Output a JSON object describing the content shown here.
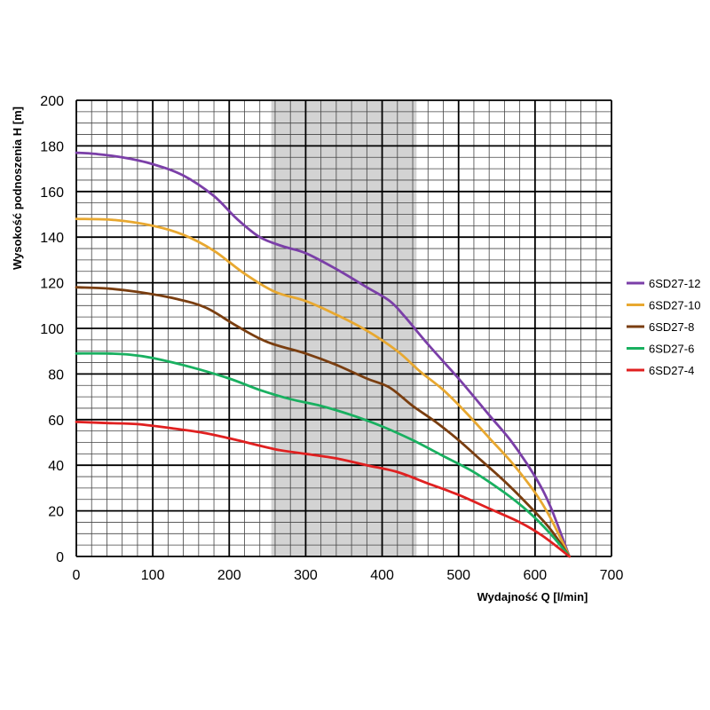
{
  "chart_data": {
    "type": "line",
    "xlabel": "Wydajność Q [l/min]",
    "ylabel": "Wysokość podnoszenia H [m]",
    "xlim": [
      0,
      700
    ],
    "ylim": [
      0,
      200
    ],
    "x_major_ticks": [
      0,
      100,
      200,
      300,
      400,
      500,
      600,
      700
    ],
    "y_major_ticks": [
      0,
      20,
      40,
      60,
      80,
      100,
      120,
      140,
      160,
      180,
      200
    ],
    "x_minor_step": 20,
    "y_minor_step": 5,
    "grid": true,
    "legend_position": "right",
    "highlight_band": {
      "x_from": 255,
      "x_to": 445,
      "color": "#d3d3d3"
    },
    "series": [
      {
        "name": "6SD27-12",
        "color": "#7b3fa8",
        "points": [
          [
            0,
            177
          ],
          [
            25,
            176.5
          ],
          [
            60,
            175
          ],
          [
            100,
            172
          ],
          [
            140,
            167
          ],
          [
            180,
            158
          ],
          [
            210,
            148
          ],
          [
            240,
            140
          ],
          [
            270,
            136
          ],
          [
            300,
            133
          ],
          [
            340,
            126
          ],
          [
            380,
            118
          ],
          [
            410,
            112
          ],
          [
            430,
            105
          ],
          [
            460,
            93
          ],
          [
            500,
            78
          ],
          [
            540,
            62
          ],
          [
            570,
            50
          ],
          [
            600,
            35
          ],
          [
            620,
            22
          ],
          [
            645,
            0
          ]
        ]
      },
      {
        "name": "6SD27-10",
        "color": "#e8a830",
        "points": [
          [
            0,
            148
          ],
          [
            50,
            147.5
          ],
          [
            100,
            145
          ],
          [
            140,
            141
          ],
          [
            180,
            134
          ],
          [
            220,
            124
          ],
          [
            260,
            116
          ],
          [
            300,
            112
          ],
          [
            340,
            106
          ],
          [
            380,
            99
          ],
          [
            420,
            90
          ],
          [
            450,
            81
          ],
          [
            480,
            73
          ],
          [
            510,
            63
          ],
          [
            540,
            52
          ],
          [
            570,
            41
          ],
          [
            600,
            28
          ],
          [
            620,
            17
          ],
          [
            645,
            0
          ]
        ]
      },
      {
        "name": "6SD27-8",
        "color": "#7a3e10",
        "points": [
          [
            0,
            118
          ],
          [
            40,
            117.5
          ],
          [
            80,
            116
          ],
          [
            130,
            113
          ],
          [
            170,
            109
          ],
          [
            210,
            101
          ],
          [
            250,
            94
          ],
          [
            300,
            89
          ],
          [
            340,
            84
          ],
          [
            380,
            78
          ],
          [
            410,
            74
          ],
          [
            440,
            66
          ],
          [
            470,
            59
          ],
          [
            500,
            51
          ],
          [
            530,
            42
          ],
          [
            560,
            33
          ],
          [
            590,
            23
          ],
          [
            620,
            12
          ],
          [
            645,
            0
          ]
        ]
      },
      {
        "name": "6SD27-6",
        "color": "#19b060",
        "points": [
          [
            0,
            89
          ],
          [
            40,
            89
          ],
          [
            70,
            88.5
          ],
          [
            100,
            87
          ],
          [
            150,
            83
          ],
          [
            200,
            78
          ],
          [
            240,
            73
          ],
          [
            280,
            69
          ],
          [
            320,
            66
          ],
          [
            360,
            62
          ],
          [
            400,
            57
          ],
          [
            440,
            51
          ],
          [
            480,
            44
          ],
          [
            520,
            37
          ],
          [
            560,
            28
          ],
          [
            590,
            20
          ],
          [
            620,
            10
          ],
          [
            645,
            0
          ]
        ]
      },
      {
        "name": "6SD27-4",
        "color": "#e02020",
        "points": [
          [
            0,
            59
          ],
          [
            40,
            58.5
          ],
          [
            80,
            58
          ],
          [
            130,
            56
          ],
          [
            170,
            54
          ],
          [
            210,
            51
          ],
          [
            260,
            47
          ],
          [
            300,
            45
          ],
          [
            340,
            43
          ],
          [
            380,
            40
          ],
          [
            420,
            37
          ],
          [
            460,
            32
          ],
          [
            500,
            27
          ],
          [
            540,
            21
          ],
          [
            580,
            15
          ],
          [
            610,
            9
          ],
          [
            645,
            0
          ]
        ]
      }
    ]
  }
}
